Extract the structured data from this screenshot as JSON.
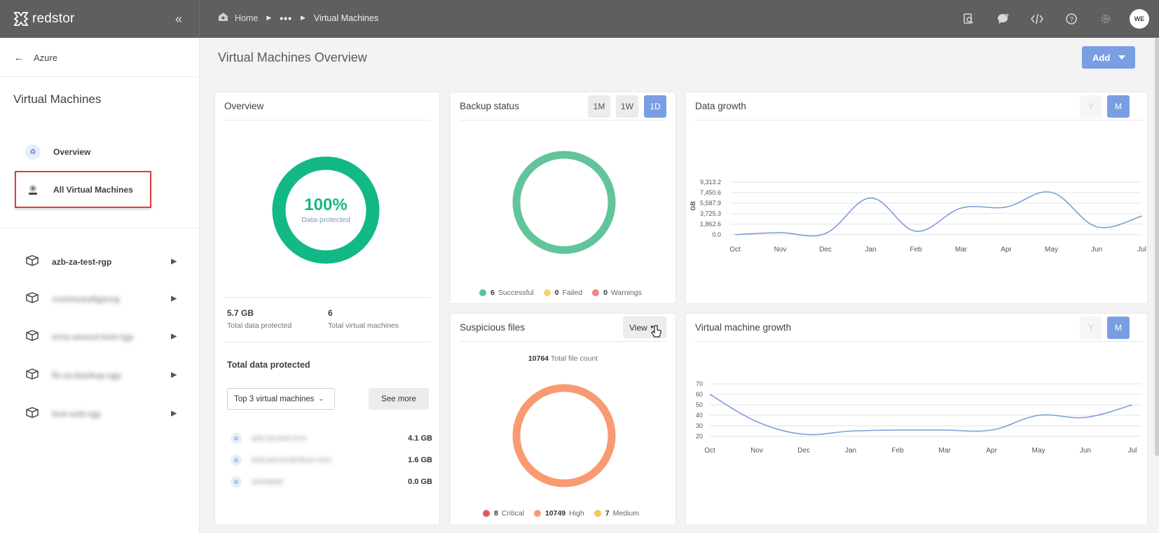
{
  "brand": {
    "name": "redstor"
  },
  "breadcrumb": {
    "home": "Home",
    "dots": "•••",
    "current": "Virtual Machines"
  },
  "user": {
    "initials": "WE"
  },
  "topbar_icons": [
    "search-icon",
    "chat-icon",
    "code-icon",
    "help-icon",
    "gear-icon"
  ],
  "sidebar": {
    "back_label": "Azure",
    "title": "Virtual Machines",
    "nav": [
      {
        "label": "Overview",
        "icon": "overview-icon"
      },
      {
        "label": "All Virtual Machines",
        "icon": "vm-icon",
        "highlighted": true
      }
    ],
    "resource_groups": [
      {
        "label": "azb-za-test-rgp",
        "blurred": false
      },
      {
        "label": "commvaultgarog",
        "blurred": true
      },
      {
        "label": "erns-anesst-test-rgp",
        "blurred": true
      },
      {
        "label": "ftr-za-backup-rgp",
        "blurred": true
      },
      {
        "label": "test-sett-rgp",
        "blurred": true
      }
    ]
  },
  "main": {
    "title": "Virtual Machines Overview",
    "add_label": "Add"
  },
  "overview": {
    "title": "Overview",
    "percent": "100%",
    "percent_caption": "Data-protected",
    "stats": [
      {
        "value": "5.7 GB",
        "label": "Total data protected"
      },
      {
        "value": "6",
        "label": "Total virtual machines"
      }
    ],
    "total_title": "Total data protected",
    "dropdown_value": "Top 3 virtual machines",
    "see_more": "See more",
    "vms": [
      {
        "name": "azb-za-test-vm1",
        "size": "4.1 GB"
      },
      {
        "name": "test-personal-linux-vm1",
        "size": "1.6 GB"
      },
      {
        "name": "amostest",
        "size": "0.0 GB"
      }
    ]
  },
  "backup_status": {
    "title": "Backup status",
    "ranges": [
      "1M",
      "1W",
      "1D"
    ],
    "active_range": "1D",
    "legend": [
      {
        "count": "6",
        "label": "Successful",
        "color": "#5cc59a"
      },
      {
        "count": "0",
        "label": "Failed",
        "color": "#f3d46e"
      },
      {
        "count": "0",
        "label": "Warnings",
        "color": "#e88a8a"
      }
    ]
  },
  "suspicious_files": {
    "title": "Suspicious files",
    "view_label": "View",
    "total_count": "10764",
    "total_caption": "Total file count",
    "legend": [
      {
        "count": "8",
        "label": "Critical",
        "color": "#e05a5a"
      },
      {
        "count": "10749",
        "label": "High",
        "color": "#f89a72"
      },
      {
        "count": "7",
        "label": "Medium",
        "color": "#f0c85c"
      }
    ]
  },
  "data_growth": {
    "title": "Data growth",
    "ranges": [
      "Y",
      "M"
    ],
    "active_range": "M"
  },
  "vm_growth": {
    "title": "Virtual machine growth",
    "ranges": [
      "Y",
      "M"
    ],
    "active_range": "M"
  },
  "chart_data": [
    {
      "type": "line",
      "title": "Data growth",
      "xlabel": "",
      "ylabel": "GB",
      "categories": [
        "Oct",
        "Nov",
        "Dec",
        "Jan",
        "Feb",
        "Mar",
        "Apr",
        "May",
        "Jun",
        "Jul"
      ],
      "yticks": [
        "0.0",
        "1,862.6",
        "3,725.3",
        "5,587.9",
        "7,450.6",
        "9,313.2"
      ],
      "ylim": [
        0,
        9313.2
      ],
      "series": [
        {
          "values": [
            0,
            350,
            200,
            6500,
            600,
            4700,
            4900,
            7500,
            1400,
            3300
          ]
        }
      ]
    },
    {
      "type": "line",
      "title": "Virtual machine growth",
      "xlabel": "",
      "ylabel": "",
      "categories": [
        "Oct",
        "Nov",
        "Dec",
        "Jan",
        "Feb",
        "Mar",
        "Apr",
        "May",
        "Jun",
        "Jul"
      ],
      "yticks": [
        "20",
        "30",
        "40",
        "50",
        "60",
        "70"
      ],
      "ylim": [
        20,
        70
      ],
      "series": [
        {
          "values": [
            60,
            34,
            22,
            25,
            26,
            26,
            26,
            40,
            38,
            50
          ]
        }
      ]
    }
  ]
}
